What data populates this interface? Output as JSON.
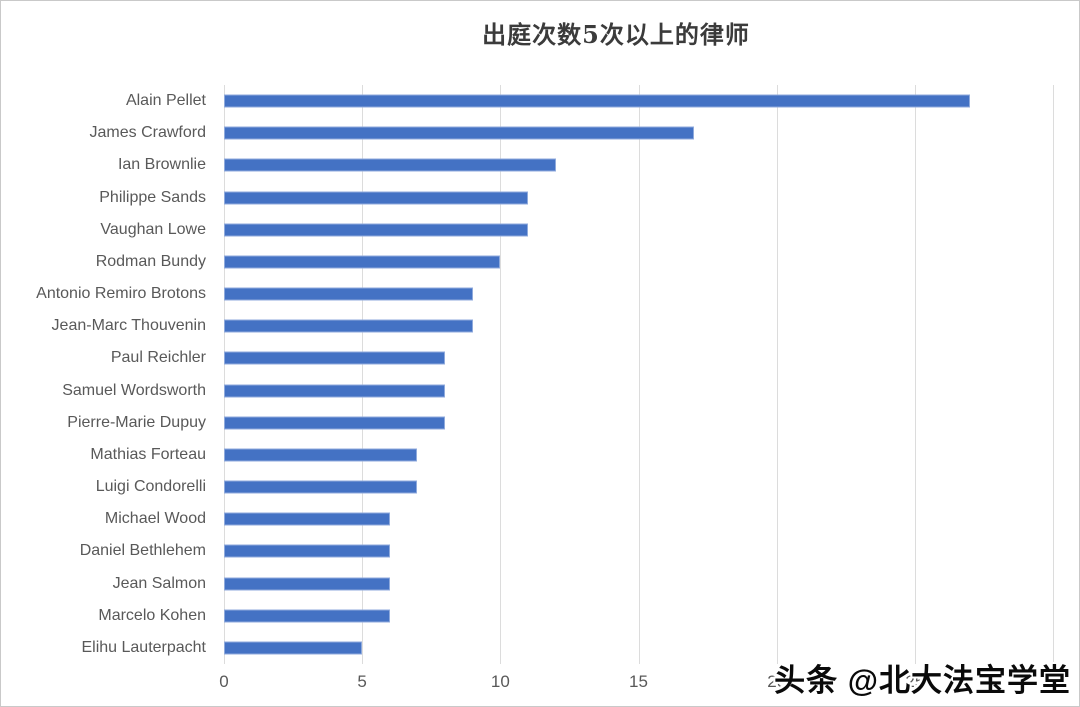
{
  "chart_data": {
    "type": "bar",
    "orientation": "horizontal",
    "title": "出庭次数5次以上的律师",
    "categories": [
      "Alain Pellet",
      "James Crawford",
      "Ian Brownlie",
      "Philippe Sands",
      "Vaughan Lowe",
      "Rodman Bundy",
      "Antonio Remiro Brotons",
      "Jean-Marc Thouvenin",
      "Paul Reichler",
      "Samuel Wordsworth",
      "Pierre-Marie Dupuy",
      "Mathias Forteau",
      "Luigi Condorelli",
      "Michael Wood",
      "Daniel Bethlehem",
      "Jean Salmon",
      "Marcelo Kohen",
      "Elihu Lauterpacht"
    ],
    "values": [
      27,
      17,
      12,
      11,
      11,
      10,
      9,
      9,
      8,
      8,
      8,
      7,
      7,
      6,
      6,
      6,
      6,
      5
    ],
    "xlabel": "",
    "ylabel": "",
    "xlim": [
      0,
      30
    ],
    "x_ticks": [
      0,
      5,
      10,
      15,
      20,
      25,
      30
    ],
    "grid": "vertical-only",
    "legend": "none",
    "bar_color": "#4472c4",
    "bar_border_color": "#8faadc",
    "gridline_color": "#dcdcdc",
    "label_color": "#595959",
    "title_color": "#3b3b3b"
  },
  "watermark": {
    "text": "头条 @北大法宝学堂"
  }
}
